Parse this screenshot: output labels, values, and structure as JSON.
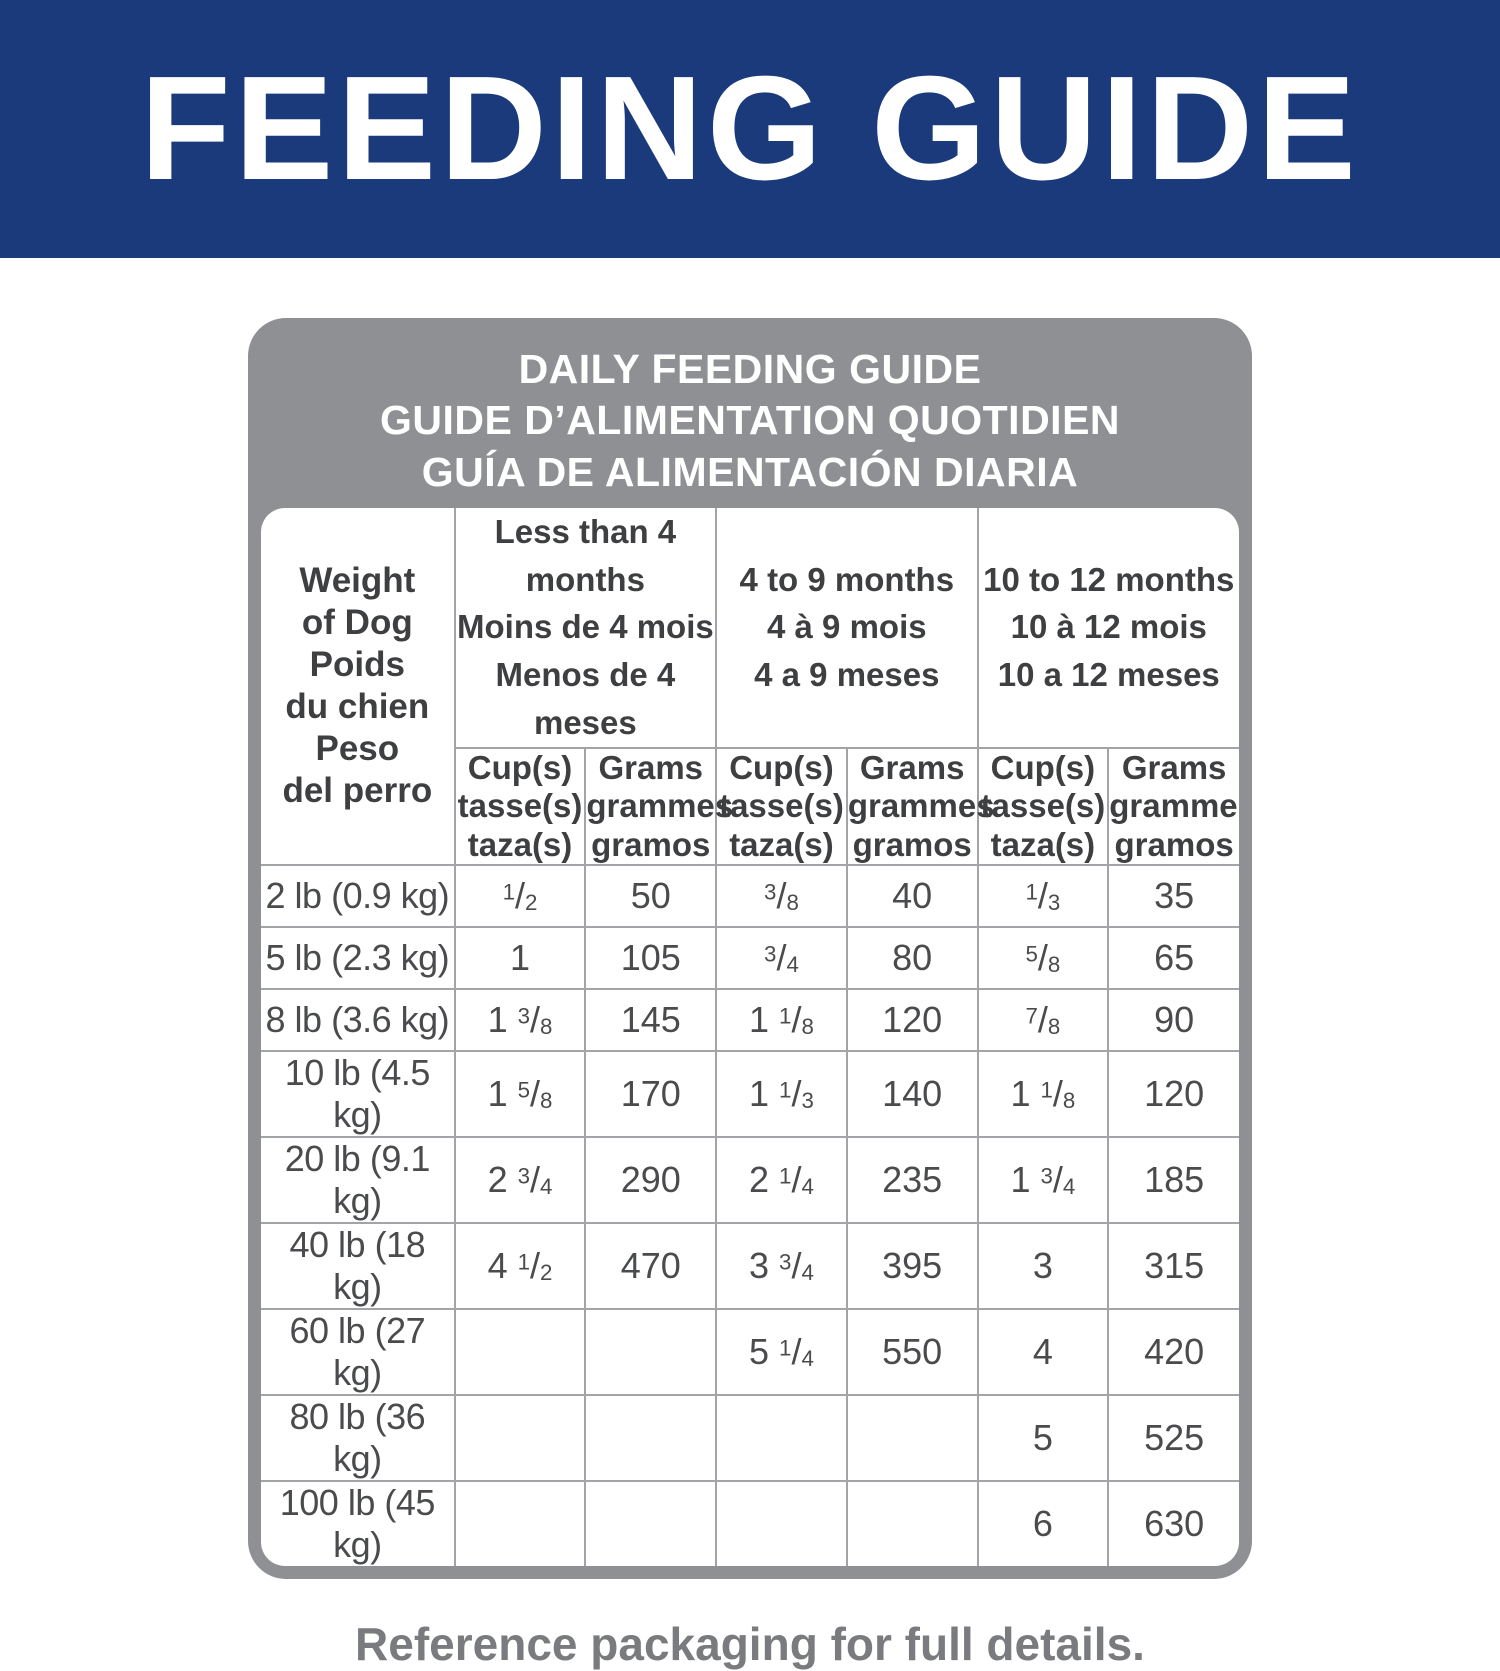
{
  "colors": {
    "banner_bg": "#1a3a7c",
    "panel_bg": "#8e9093",
    "grid_line": "#a2a4a7",
    "header_text": "#3e3f41",
    "body_text": "#4a4b4d",
    "footer_text": "#797b7e"
  },
  "banner": {
    "title": "FEEDING GUIDE"
  },
  "panel": {
    "title_lines": [
      "DAILY FEEDING GUIDE",
      "GUIDE D’ALIMENTATION QUOTIDIEN",
      "GUÍA DE ALIMENTACIÓN DIARIA"
    ]
  },
  "table": {
    "weight_header_lines": [
      "Weight",
      "of Dog",
      "Poids",
      "du chien",
      "Peso",
      "del perro"
    ],
    "age_groups": [
      {
        "lines": [
          "Less than 4 months",
          "Moins de 4 mois",
          "Menos de 4 meses"
        ]
      },
      {
        "lines": [
          "4 to 9 months",
          "4 à 9 mois",
          "4 a 9 meses"
        ]
      },
      {
        "lines": [
          "10 to 12 months",
          "10 à 12 mois",
          "10 a 12 meses"
        ]
      }
    ],
    "unit_headers": {
      "cups": [
        "Cup(s)",
        "tasse(s)",
        "taza(s)"
      ],
      "grams": [
        "Grams",
        "grammes",
        "gramos"
      ]
    },
    "rows": [
      {
        "weight": "2 lb (0.9 kg)",
        "values": [
          "1/2",
          "50",
          "3/8",
          "40",
          "1/3",
          "35"
        ]
      },
      {
        "weight": "5 lb (2.3 kg)",
        "values": [
          "1",
          "105",
          "3/4",
          "80",
          "5/8",
          "65"
        ]
      },
      {
        "weight": "8 lb (3.6 kg)",
        "values": [
          "1 3/8",
          "145",
          "1 1/8",
          "120",
          "7/8",
          "90"
        ]
      },
      {
        "weight": "10 lb (4.5 kg)",
        "values": [
          "1 5/8",
          "170",
          "1 1/3",
          "140",
          "1 1/8",
          "120"
        ]
      },
      {
        "weight": "20 lb (9.1 kg)",
        "values": [
          "2 3/4",
          "290",
          "2 1/4",
          "235",
          "1 3/4",
          "185"
        ]
      },
      {
        "weight": "40 lb (18 kg)",
        "values": [
          "4 1/2",
          "470",
          "3 3/4",
          "395",
          "3",
          "315"
        ]
      },
      {
        "weight": "60 lb (27 kg)",
        "values": [
          "",
          "",
          "5 1/4",
          "550",
          "4",
          "420"
        ]
      },
      {
        "weight": "80 lb (36 kg)",
        "values": [
          "",
          "",
          "",
          "",
          "5",
          "525"
        ]
      },
      {
        "weight": "100 lb (45 kg)",
        "values": [
          "",
          "",
          "",
          "",
          "6",
          "630"
        ]
      }
    ]
  },
  "footer": {
    "note": "Reference packaging for full details."
  }
}
